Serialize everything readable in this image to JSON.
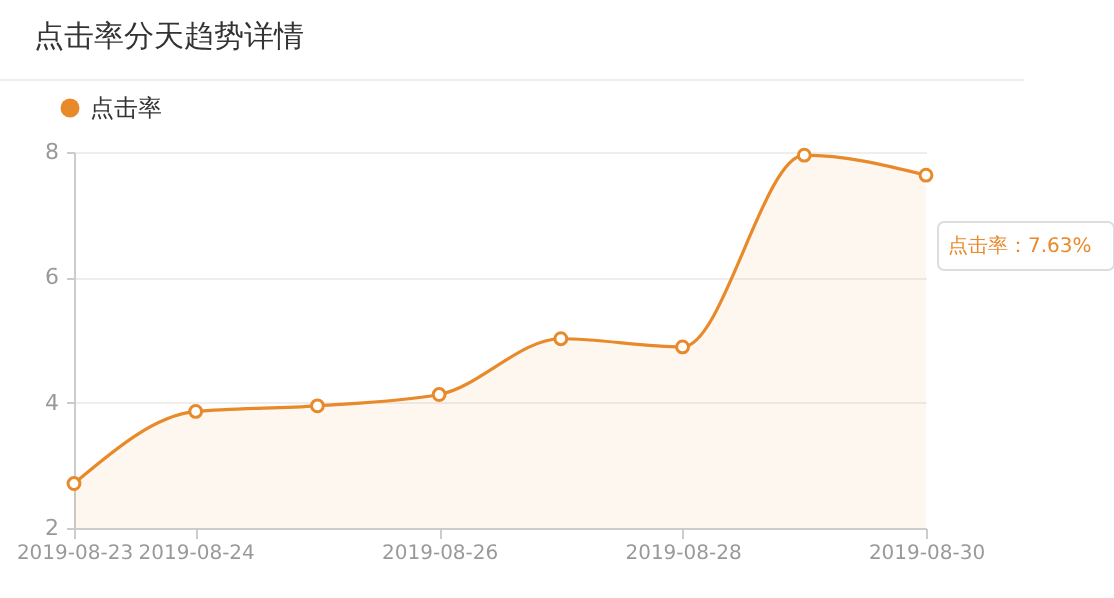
{
  "chart_data": {
    "type": "area",
    "title": "点击率分天趋势详情",
    "x": [
      "2019-08-23",
      "2019-08-24",
      "2019-08-25",
      "2019-08-26",
      "2019-08-27",
      "2019-08-28",
      "2019-08-29",
      "2019-08-30"
    ],
    "series": [
      {
        "name": "点击率",
        "color": "#e8892a",
        "values": [
          2.71,
          3.86,
          3.95,
          4.13,
          5.02,
          4.89,
          7.95,
          7.63
        ]
      }
    ],
    "xlim": [
      "2019-08-23",
      "2019-08-30"
    ],
    "xticks": [
      "2019-08-23",
      "2019-08-24",
      "2019-08-26",
      "2019-08-28",
      "2019-08-30"
    ],
    "ylim": [
      2,
      8
    ],
    "yticks": [
      2,
      4,
      6,
      8
    ],
    "grid": "y",
    "legend": "top left",
    "marker": "circle",
    "annotations": [
      "点击率：7.63%"
    ]
  }
}
